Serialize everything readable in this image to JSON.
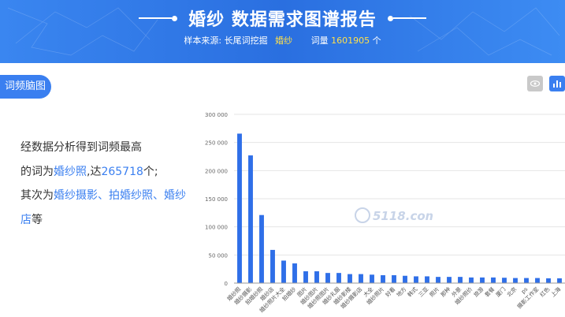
{
  "header": {
    "title": "婚纱 数据需求图谱报告",
    "source_label": "样本来源:",
    "source_value": "长尾词挖掘",
    "keyword": "婚纱",
    "count_label": "词量",
    "count_value": "1601905",
    "count_unit": "个"
  },
  "tab": {
    "label": "词频脑图"
  },
  "description": {
    "line1": "经数据分析得到词频最高",
    "p2_prefix": "的词为",
    "top_word": "婚纱照",
    "p2_mid": ",达",
    "top_count": "265718",
    "p2_suffix": "个;",
    "p3_prefix": "其次为",
    "others_1": "婚纱摄影、拍婚纱照、婚纱",
    "others_2": "店",
    "p3_suffix": "等"
  },
  "watermark": "5118.com",
  "colors": {
    "accent": "#3a7ff0",
    "header": "#2a6fe0",
    "highlight": "#ffe04a",
    "bar": "#2f6fe8"
  },
  "icons": {
    "tool_a": "eye-icon",
    "tool_b": "bar-chart-icon"
  },
  "chart_data": {
    "type": "bar",
    "ylim": [
      0,
      300000
    ],
    "yticks": [
      "0",
      "50 000",
      "100 000",
      "150 000",
      "200 000",
      "250 000",
      "300 000"
    ],
    "categories": [
      "婚纱照",
      "婚纱摄影",
      "拍婚纱照",
      "婚纱店",
      "婚纱照片大全",
      "拍婚纱",
      "图片",
      "婚纱图片",
      "婚纱照图片",
      "婚纱礼服",
      "婚纱影楼",
      "婚纱摄影店",
      "大全",
      "婚纱照片",
      "好看",
      "地方",
      "韩式",
      "三亚",
      "照片",
      "那种",
      "外景",
      "婚纱照价",
      "旅游",
      "套餐",
      "厦门",
      "北京",
      "ps",
      "摄影工作室",
      "红色",
      "上海"
    ],
    "values": [
      265718,
      227000,
      121000,
      59000,
      40000,
      35000,
      21000,
      21000,
      18000,
      18000,
      16000,
      16000,
      15000,
      14000,
      14000,
      13000,
      12000,
      12000,
      11000,
      11000,
      11000,
      10000,
      10000,
      10000,
      9500,
      9000,
      9000,
      9000,
      8500,
      8500
    ]
  }
}
